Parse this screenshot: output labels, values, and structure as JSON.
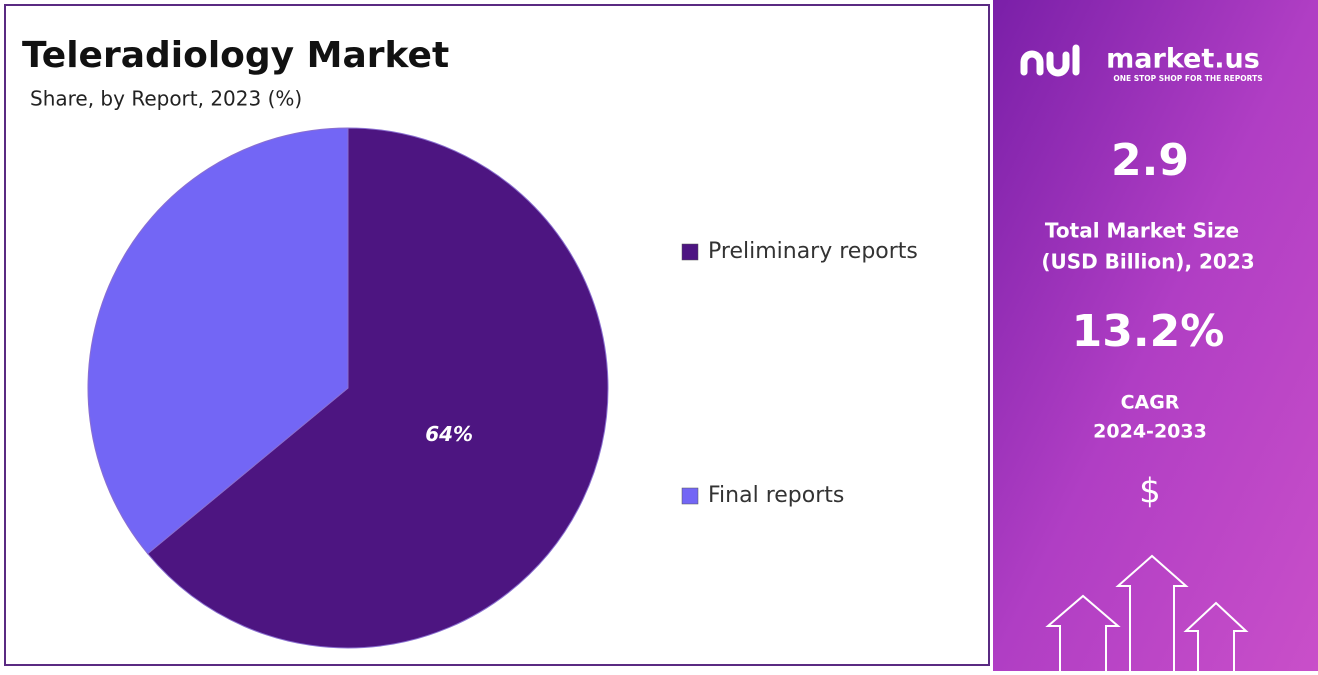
{
  "chart_data": {
    "type": "pie",
    "title": "Teleradiology Market",
    "subtitle": "Share, by Report, 2023 (%)",
    "categories": [
      "Preliminary reports",
      "Final reports"
    ],
    "values": [
      64,
      36
    ],
    "value_labels": [
      "64%",
      null
    ],
    "colors": [
      "#4d1581",
      "#7366f5"
    ],
    "legend": "right"
  },
  "side_panel": {
    "brand": "market.us",
    "tagline": "ONE STOP SHOP FOR THE REPORTS",
    "market_size": "2.9",
    "market_size_label_1": "Total Market Size",
    "market_size_label_2": "(USD Billion), 2023",
    "cagr": "13.2%",
    "cagr_label": "CAGR",
    "cagr_period": "2024-2033",
    "currency": "$"
  }
}
